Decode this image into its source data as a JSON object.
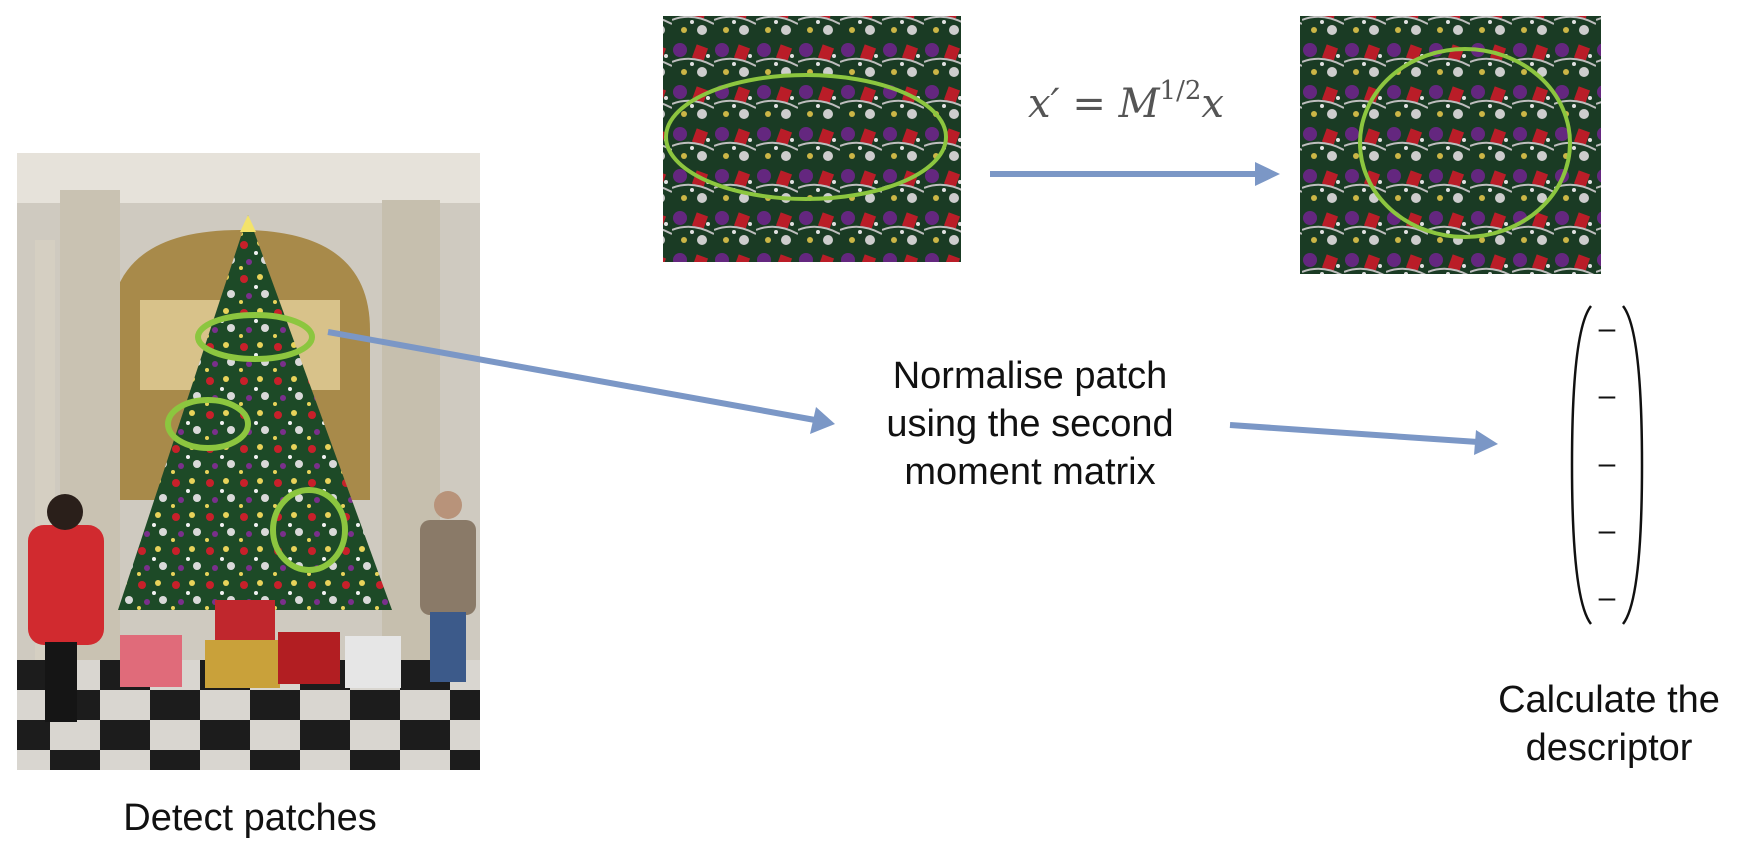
{
  "captions": {
    "detect": "Detect patches",
    "normalise_lines": [
      "Normalise patch",
      "using the second",
      "moment matrix"
    ],
    "descriptor_lines": [
      "Calculate the",
      "descriptor"
    ]
  },
  "formula": {
    "lhs": "x′ = M",
    "exponent": "1/2",
    "rhs": "x"
  },
  "descriptor_vector": {
    "entries": [
      "–",
      "–",
      "–",
      "–",
      "–"
    ]
  },
  "colors": {
    "arrow": "#7b97c6",
    "ellipse": "#8cc63f",
    "tree_green": "#1f4f2a",
    "ornament_red": "#c8202a",
    "floor_dark": "#222222"
  },
  "icons": {
    "scene": "christmas-tree-photo",
    "patch_before": "elliptical-patch-photo",
    "patch_after": "circular-patch-photo"
  }
}
